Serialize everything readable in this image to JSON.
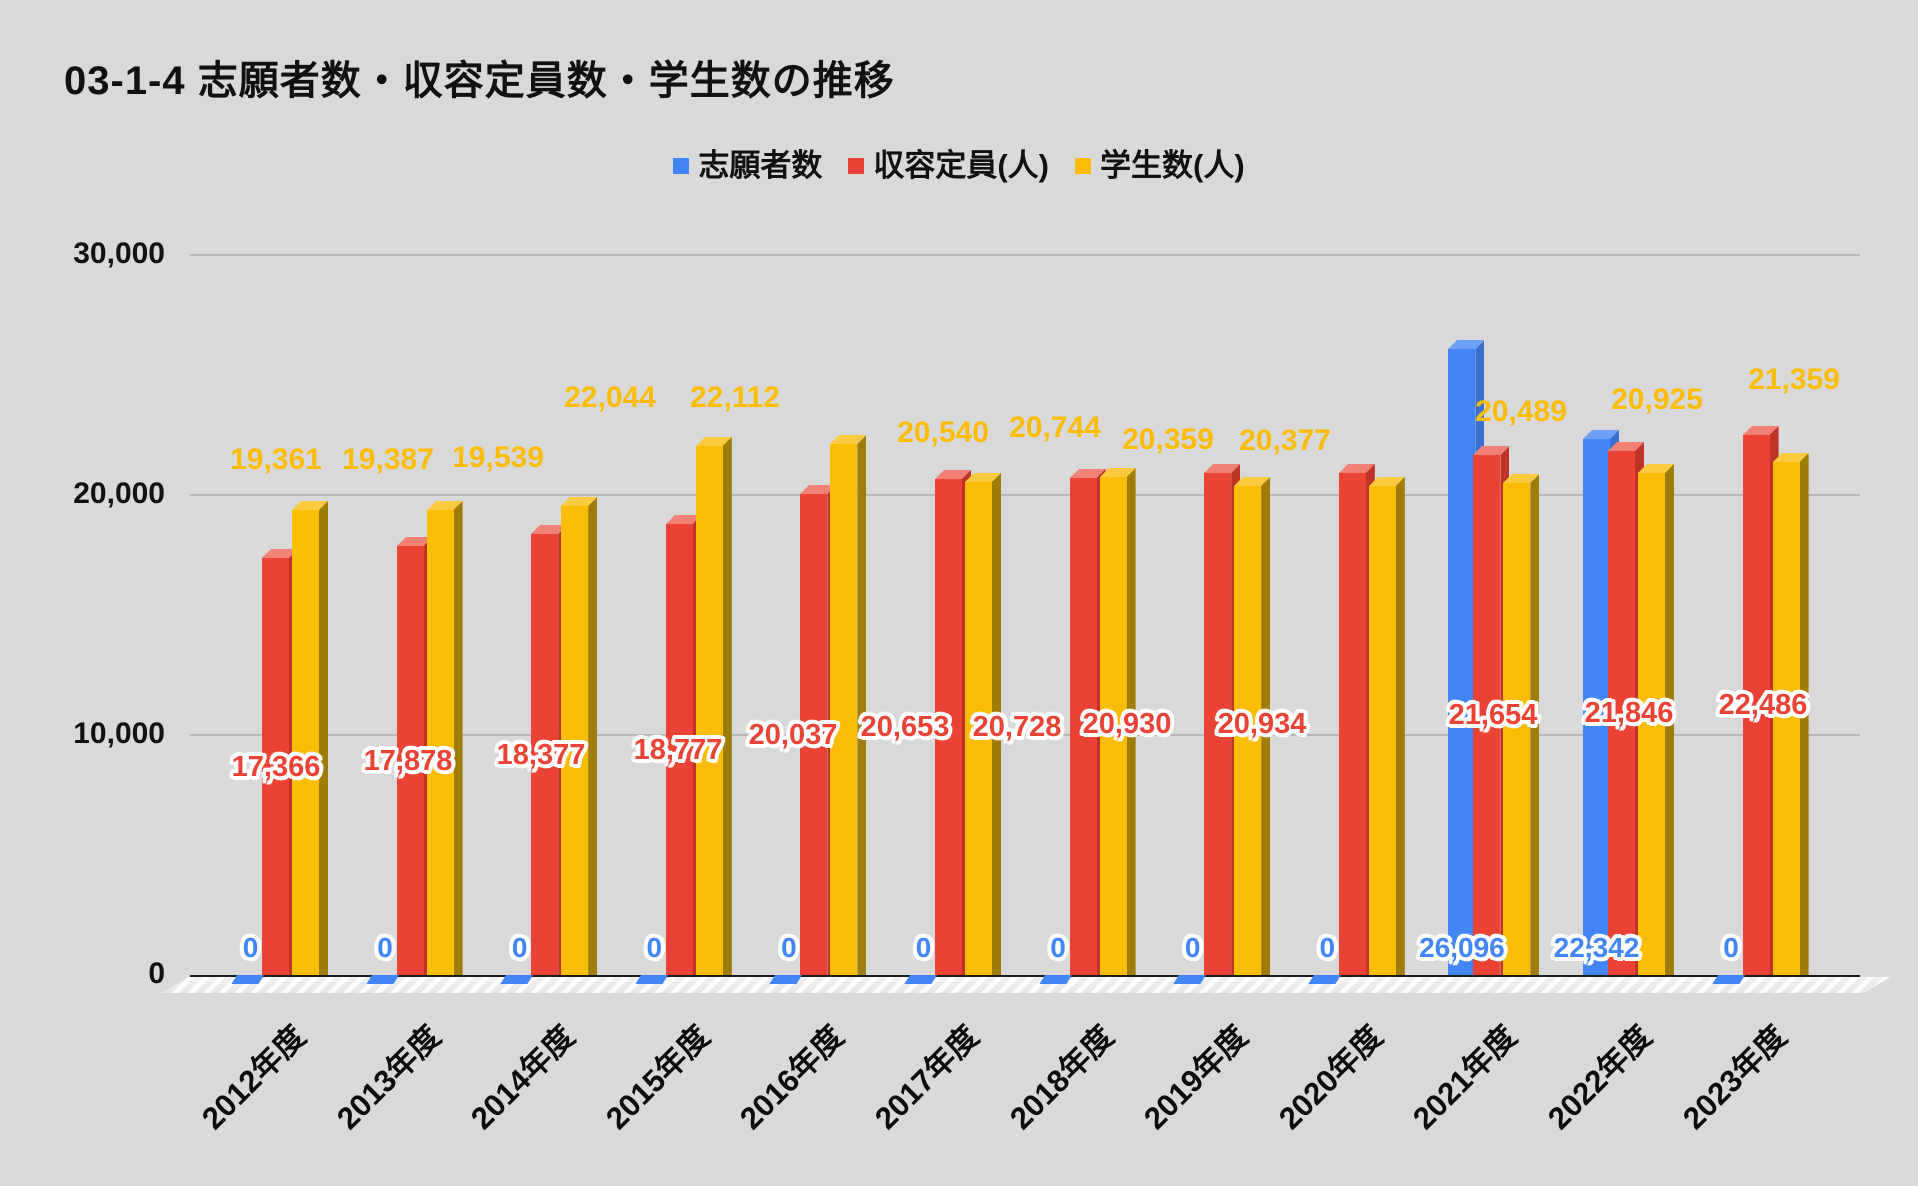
{
  "chart_data": {
    "type": "bar",
    "title": "03-1-4 志願者数・収容定員数・学生数の推移",
    "categories": [
      "2012年度",
      "2013年度",
      "2014年度",
      "2015年度",
      "2016年度",
      "2017年度",
      "2018年度",
      "2019年度",
      "2020年度",
      "2021年度",
      "2022年度",
      "2023年度"
    ],
    "series": [
      {
        "name": "志願者数",
        "color": "#4285F4",
        "color_top": "#6FA0F6",
        "color_side": "#3B6FD2",
        "values": [
          0,
          0,
          0,
          0,
          0,
          0,
          0,
          0,
          0,
          26096,
          22342,
          0
        ]
      },
      {
        "name": "収容定員(人)",
        "color": "#EA4335",
        "color_top": "#F08174",
        "color_side": "#BF3427",
        "values": [
          17366,
          17878,
          18377,
          18777,
          20037,
          20653,
          20728,
          20930,
          20934,
          21654,
          21846,
          22486
        ]
      },
      {
        "name": "学生数(人)",
        "color": "#FBBC04",
        "color_top": "#FCCA3E",
        "color_side": "#9E7C06",
        "values": [
          19361,
          19387,
          19539,
          22044,
          22112,
          20540,
          20744,
          20359,
          20377,
          20489,
          20925,
          21359
        ]
      }
    ],
    "y_ticks": [
      {
        "value": 0,
        "label": "0"
      },
      {
        "value": 10000,
        "label": "10,000"
      },
      {
        "value": 20000,
        "label": "20,000"
      },
      {
        "value": 30000,
        "label": "30,000"
      }
    ],
    "ylim": [
      0,
      30000
    ],
    "grid": true,
    "legend_position": "top",
    "background_color": "#d9d9d9",
    "axis_text_color": "#111111"
  }
}
